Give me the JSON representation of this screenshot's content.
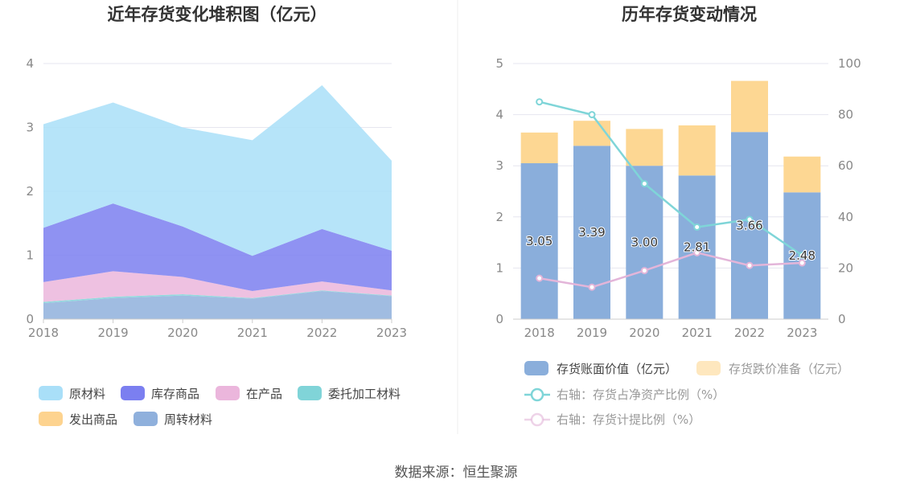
{
  "source": "数据来源：恒生聚源",
  "colors": {
    "raw_materials": "#a9dff8",
    "inventory_goods": "#7b7ff0",
    "wip": "#ebb6dc",
    "consigned": "#80d4d8",
    "shipped_goods": "#fdd38f",
    "turnover_materials": "#8fb0dc",
    "book_value": "#8aaedb",
    "impairment": "#fdd793",
    "ratio_net_assets": "#7fd5d8",
    "provision_ratio": "#e3b5d9"
  },
  "chart_data": [
    {
      "type": "area",
      "title": "近年存货变化堆积图（亿元）",
      "x": [
        "2018",
        "2019",
        "2020",
        "2021",
        "2022",
        "2023"
      ],
      "ylim": [
        0,
        4
      ],
      "yticks": [
        "0",
        "1",
        "2",
        "3",
        "4"
      ],
      "grid": true,
      "legend_position": "bottom",
      "stacked": true,
      "series": [
        {
          "name": "周转材料",
          "color_key": "turnover_materials",
          "values": [
            0.25,
            0.33,
            0.37,
            0.32,
            0.44,
            0.36
          ]
        },
        {
          "name": "发出商品",
          "color_key": "shipped_goods",
          "values": [
            0.0,
            0.0,
            0.0,
            0.0,
            0.0,
            0.0
          ]
        },
        {
          "name": "委托加工材料",
          "color_key": "consigned",
          "values": [
            0.02,
            0.02,
            0.02,
            0.01,
            0.01,
            0.01
          ]
        },
        {
          "name": "在产品",
          "color_key": "wip",
          "values": [
            0.31,
            0.4,
            0.27,
            0.11,
            0.14,
            0.08
          ]
        },
        {
          "name": "库存商品",
          "color_key": "inventory_goods",
          "values": [
            0.85,
            1.06,
            0.79,
            0.55,
            0.82,
            0.62
          ]
        },
        {
          "name": "原材料",
          "color_key": "raw_materials",
          "values": [
            1.62,
            1.58,
            1.55,
            1.81,
            2.25,
            1.41
          ]
        }
      ],
      "legend_order": [
        "原材料",
        "库存商品",
        "在产品",
        "委托加工材料",
        "发出商品",
        "周转材料"
      ]
    },
    {
      "type": "bar",
      "title": "历年存货变动情况",
      "categories": [
        "2018",
        "2019",
        "2020",
        "2021",
        "2022",
        "2023"
      ],
      "ylim": [
        0,
        5
      ],
      "yticks": [
        "0",
        "1",
        "2",
        "3",
        "4",
        "5"
      ],
      "y2lim": [
        0,
        100
      ],
      "y2ticks": [
        "0",
        "20",
        "40",
        "60",
        "80",
        "100"
      ],
      "grid": true,
      "legend_position": "bottom",
      "bar_series": [
        {
          "name": "存货账面价值（亿元）",
          "color_key": "book_value",
          "values": [
            3.05,
            3.39,
            3.0,
            2.81,
            3.66,
            2.48
          ],
          "labels": [
            "3.05",
            "3.39",
            "3.00",
            "2.81",
            "3.66",
            "2.48"
          ]
        },
        {
          "name": "存货跌价准备（亿元）",
          "color_key": "impairment",
          "values": [
            0.6,
            0.49,
            0.72,
            0.98,
            1.0,
            0.7
          ]
        }
      ],
      "line_series": [
        {
          "name": "右轴：存货占净资产比例（%）",
          "color_key": "ratio_net_assets",
          "values": [
            85,
            80,
            53,
            36,
            39,
            25
          ]
        },
        {
          "name": "右轴：存货计提比例（%）",
          "color_key": "provision_ratio",
          "values": [
            16,
            12.5,
            19,
            26,
            21,
            22
          ]
        }
      ]
    }
  ]
}
